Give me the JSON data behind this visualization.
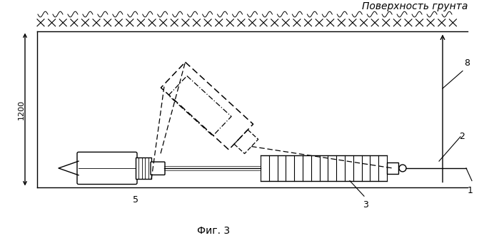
{
  "title": "Фиг. 3",
  "surface_label": "Поверхность грунта",
  "depth_label": "1200",
  "label_1": "1",
  "label_2": "2",
  "label_3": "3",
  "label_5": "5",
  "label_8": "8",
  "bg_color": "#ffffff",
  "line_color": "#000000"
}
